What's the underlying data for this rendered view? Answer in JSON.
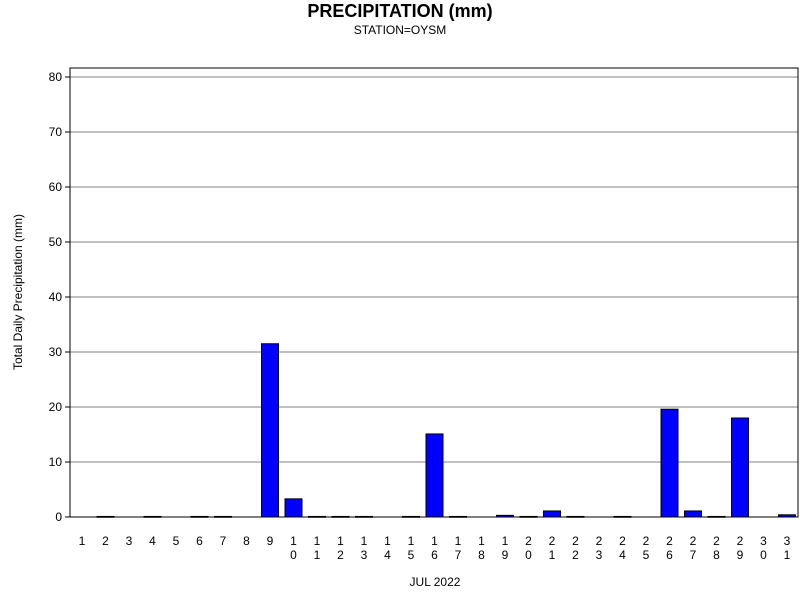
{
  "chart_data": {
    "type": "bar",
    "title": "PRECIPITATION (mm)",
    "subtitle": "STATION=OYSM",
    "xlabel": "JUL 2022",
    "ylabel": "Total Daily Precipitation (mm)",
    "ylim": [
      0,
      80
    ],
    "yticks": [
      0,
      10,
      20,
      30,
      40,
      50,
      60,
      70,
      80
    ],
    "grid": true,
    "bar_color": "#0000ff",
    "categories": [
      "1",
      "2",
      "3",
      "4",
      "5",
      "6",
      "7",
      "8",
      "9",
      "10",
      "11",
      "12",
      "13",
      "14",
      "15",
      "16",
      "17",
      "18",
      "19",
      "20",
      "21",
      "22",
      "23",
      "24",
      "25",
      "26",
      "27",
      "28",
      "29",
      "30",
      "31"
    ],
    "values": [
      0,
      0.1,
      0,
      0.1,
      0,
      0.1,
      0.1,
      0,
      31.5,
      3.3,
      0.1,
      0.1,
      0.1,
      0,
      0.1,
      15.1,
      0.1,
      0,
      0.3,
      0.1,
      1.1,
      0.1,
      0,
      0.1,
      0,
      19.6,
      1.1,
      0.1,
      18.0,
      0,
      0.4
    ]
  }
}
